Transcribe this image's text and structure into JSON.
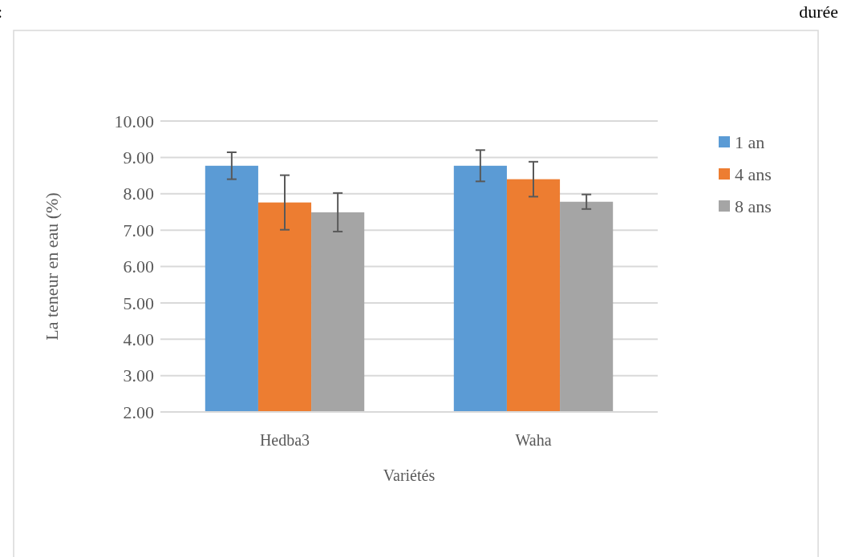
{
  "chart_data": {
    "type": "bar",
    "categories": [
      "Hedba3",
      "Waha"
    ],
    "series": [
      {
        "name": "1 an",
        "color": "#5b9bd5",
        "values": [
          8.77,
          8.77
        ],
        "errors": [
          0.37,
          0.43
        ]
      },
      {
        "name": "4 ans",
        "color": "#ed7d31",
        "values": [
          7.76,
          8.4
        ],
        "errors": [
          0.75,
          0.48
        ]
      },
      {
        "name": "8 ans",
        "color": "#a5a5a5",
        "values": [
          7.49,
          7.78
        ],
        "errors": [
          0.53,
          0.2
        ]
      }
    ],
    "xlabel": "Variétés",
    "ylabel": "La teneur en eau (%)",
    "ylim": [
      2,
      10
    ],
    "yticks": [
      {
        "value": 2,
        "label": "2.00"
      },
      {
        "value": 3,
        "label": "3.00"
      },
      {
        "value": 4,
        "label": "4.00"
      },
      {
        "value": 5,
        "label": "5.00"
      },
      {
        "value": 6,
        "label": "6.00"
      },
      {
        "value": 7,
        "label": "7.00"
      },
      {
        "value": 8,
        "label": "8.00"
      },
      {
        "value": 9,
        "label": "9.00"
      },
      {
        "value": 10,
        "label": "10.00"
      }
    ],
    "grid": "y",
    "legend": "right",
    "annotations": [
      ":",
      "durée"
    ]
  }
}
